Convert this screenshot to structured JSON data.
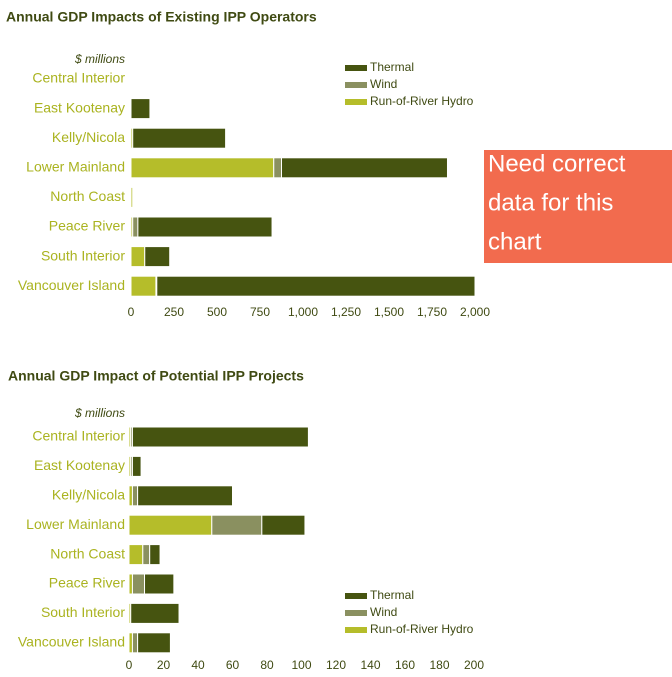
{
  "chart_data": [
    {
      "type": "bar",
      "orientation": "horizontal",
      "stacked": true,
      "title": "Annual GDP Impacts of Existing IPP Operators",
      "unit_label": "$ millions",
      "categories": [
        "Central Interior",
        "East Kootenay",
        "Kelly/Nicola",
        "Lower Mainland",
        "North Coast",
        "Peace River",
        "South Interior",
        "Vancouver Island"
      ],
      "series": [
        {
          "name": "Run-of-River Hydro",
          "color": "#b5bd2a",
          "values": [
            0,
            0,
            10,
            830,
            10,
            10,
            80,
            145
          ]
        },
        {
          "name": "Wind",
          "color": "#8a9060",
          "values": [
            0,
            0,
            0,
            45,
            0,
            30,
            0,
            5
          ]
        },
        {
          "name": "Thermal",
          "color": "#465410",
          "values": [
            0,
            110,
            540,
            965,
            0,
            780,
            145,
            1850
          ]
        }
      ],
      "xlim": [
        0,
        2000
      ],
      "xticks": [
        0,
        250,
        500,
        750,
        {
          "value": 1000,
          "label": "1,000"
        },
        {
          "value": 1250,
          "label": "1,250"
        },
        {
          "value": 1500,
          "label": "1,500"
        },
        {
          "value": 1750,
          "label": "1,750"
        },
        {
          "value": 2000,
          "label": "2,000"
        }
      ],
      "legend": "top-right"
    },
    {
      "type": "bar",
      "orientation": "horizontal",
      "stacked": true,
      "title": "Annual GDP Impact of  Potential IPP Projects",
      "unit_label": "$ millions",
      "categories": [
        "Central Interior",
        "East Kootenay",
        "Kelly/Nicola",
        "Lower Mainland",
        "North Coast",
        "Peace River",
        "South Interior",
        "Vancouver Island"
      ],
      "series": [
        {
          "name": "Run-of-River Hydro",
          "color": "#b5bd2a",
          "values": [
            1,
            1,
            2,
            48,
            8,
            2,
            1,
            2
          ]
        },
        {
          "name": "Wind",
          "color": "#8a9060",
          "values": [
            1,
            1,
            3,
            29,
            4,
            7,
            0,
            3
          ]
        },
        {
          "name": "Thermal",
          "color": "#465410",
          "values": [
            102,
            5,
            55,
            25,
            6,
            17,
            28,
            19
          ]
        }
      ],
      "xlim": [
        0,
        200
      ],
      "xticks": [
        0,
        20,
        40,
        60,
        80,
        100,
        120,
        140,
        160,
        180,
        200
      ],
      "legend": "bottom-right"
    }
  ],
  "note": {
    "lines": [
      "Need correct",
      "data for this",
      "chart"
    ],
    "color": "#f26b4e"
  }
}
